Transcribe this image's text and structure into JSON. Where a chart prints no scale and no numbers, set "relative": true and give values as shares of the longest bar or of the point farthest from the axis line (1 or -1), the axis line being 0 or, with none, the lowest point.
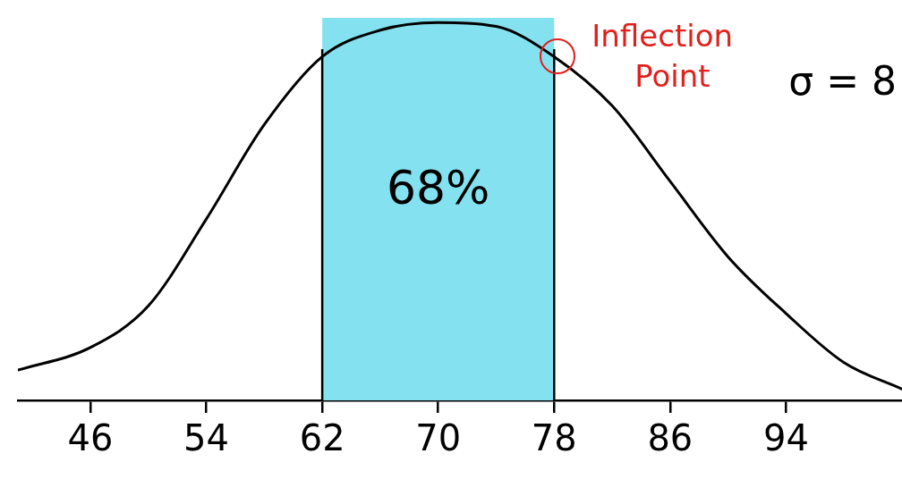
{
  "chart_data": {
    "type": "line",
    "relative": true,
    "x": [
      41,
      46,
      50,
      54,
      58,
      62,
      66,
      70,
      74,
      78,
      82,
      86,
      90,
      94,
      98,
      102
    ],
    "series": [
      {
        "color": "#000000",
        "values": [
          0.08,
          0.14,
          0.25,
          0.48,
          0.73,
          0.91,
          0.98,
          1,
          0.99,
          0.91,
          0.78,
          0.58,
          0.38,
          0.23,
          0.1,
          0.03
        ]
      }
    ],
    "xlim": [
      41,
      102
    ],
    "xticks": [
      46,
      54,
      62,
      70,
      78,
      86,
      94
    ],
    "bands": [
      {
        "axis": "x",
        "from": 62,
        "to": 78,
        "label": "68%",
        "color": "#84e1ef"
      }
    ],
    "annotations": [
      {
        "text": "Inflection Point",
        "x": 78,
        "y": 0.91
      },
      "σ = 8"
    ],
    "marker": "none",
    "line_style": "solid",
    "legend": false
  }
}
